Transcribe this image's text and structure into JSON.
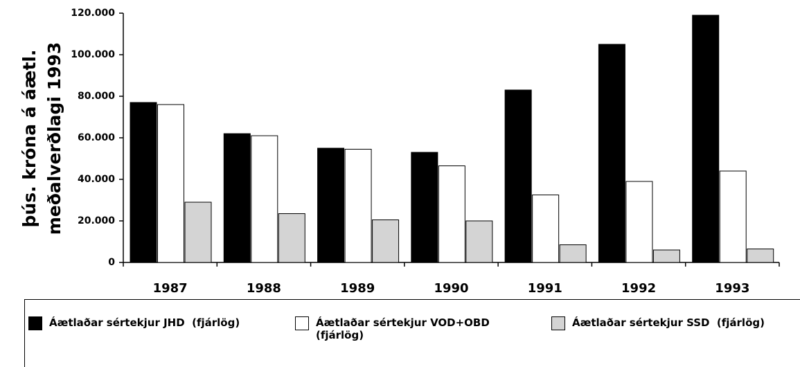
{
  "chart_data": {
    "type": "bar",
    "ylabel": [
      "þús. króna á áætl.",
      "meðalverðlagi 1993"
    ],
    "categories": [
      "1987",
      "1988",
      "1989",
      "1990",
      "1991",
      "1992",
      "1993"
    ],
    "series": [
      {
        "name": "Áætlaðar sértekjur JHD  (fjárlög)",
        "color": "#000000",
        "values": [
          77000,
          62000,
          55000,
          53000,
          83000,
          105000,
          119000
        ]
      },
      {
        "name": "Áætlaðar sértekjur VOD+OBD (fjárlög)",
        "color": "#ffffff",
        "values": [
          76000,
          61000,
          54500,
          46500,
          32500,
          39000,
          44000
        ]
      },
      {
        "name": "Áætlaðar sértekjur SSD  (fjárlög)",
        "color": "#d4d4d4",
        "values": [
          29000,
          23500,
          20500,
          20000,
          8500,
          6000,
          6500
        ]
      }
    ],
    "ylim": [
      0,
      120000
    ],
    "yticks": [
      0,
      {
        "value": 20000,
        "label": "20.000"
      },
      {
        "value": 40000,
        "label": "40.000"
      },
      {
        "value": 60000,
        "label": "60.000"
      },
      {
        "value": 80000,
        "label": "80.000"
      },
      {
        "value": 100000,
        "label": "100.000"
      },
      {
        "value": 120000,
        "label": "120.000"
      }
    ],
    "legend": "bottom"
  }
}
